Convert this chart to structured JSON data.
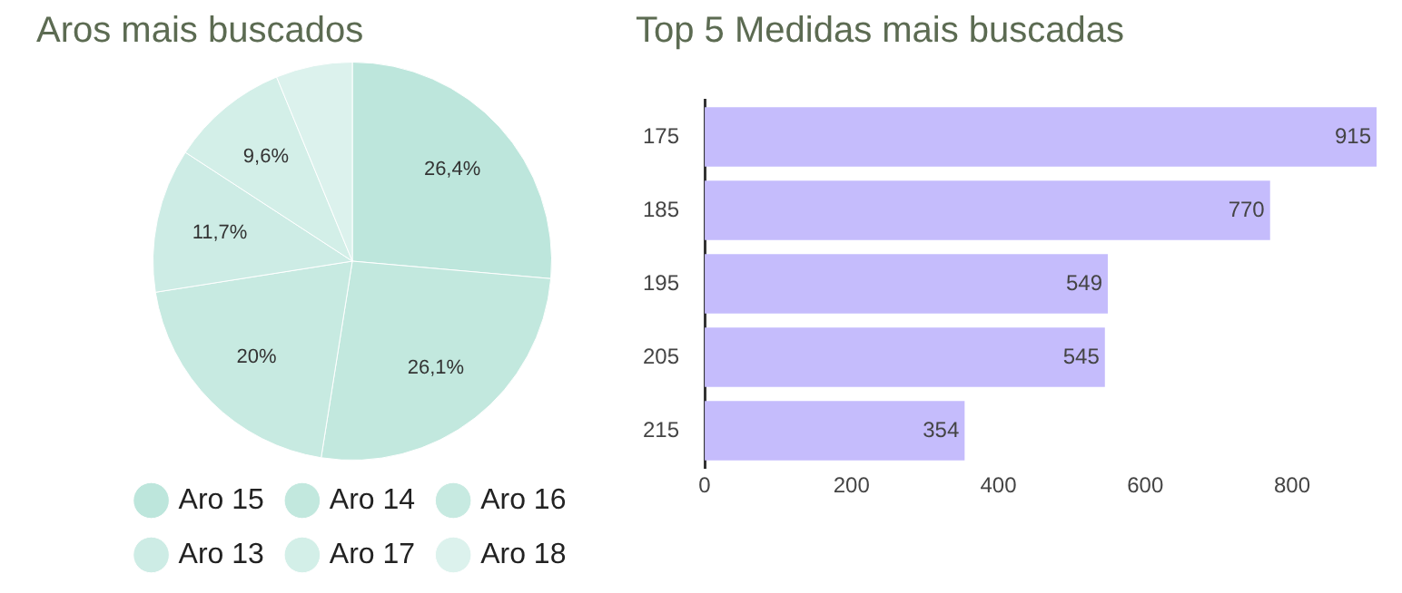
{
  "chart_data": [
    {
      "type": "pie",
      "title": "Aros mais buscados",
      "categories": [
        "Aro 15",
        "Aro 14",
        "Aro 16",
        "Aro 13",
        "Aro 17",
        "Aro 18"
      ],
      "values": [
        26.4,
        26.1,
        20,
        11.7,
        9.6,
        6.2
      ],
      "colors": [
        "#bde6dc",
        "#c2e8de",
        "#c7eae1",
        "#cdece5",
        "#d3efe8",
        "#dcf2ed"
      ],
      "value_labels": [
        "26,4%",
        "26,1%",
        "20%",
        "11,7%",
        "9,6%",
        null
      ],
      "legend": "bottom"
    },
    {
      "type": "bar",
      "orientation": "horizontal",
      "title": "Top 5 Medidas mais buscadas",
      "categories": [
        "175",
        "185",
        "195",
        "205",
        "215"
      ],
      "values": [
        915,
        770,
        549,
        545,
        354
      ],
      "color": "#c5bcfc",
      "xlim": [
        0,
        915
      ],
      "xticks": [
        0,
        200,
        400,
        600,
        800
      ],
      "data_labels": true,
      "grid": false,
      "legend": false
    }
  ]
}
